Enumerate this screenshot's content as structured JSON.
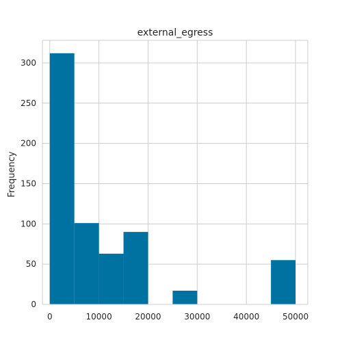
{
  "chart_data": {
    "type": "bar",
    "title": "external_egress",
    "xlabel": "",
    "ylabel": "Frequency",
    "xlim": [
      -1500,
      52500
    ],
    "ylim": [
      0,
      328
    ],
    "grid": true,
    "bar_color": "#0072a2",
    "grid_color": "#cccccc",
    "xticks": [
      0,
      10000,
      20000,
      30000,
      40000,
      50000
    ],
    "xtick_labels": [
      "0",
      "10000",
      "20000",
      "30000",
      "40000",
      "50000"
    ],
    "yticks": [
      0,
      50,
      100,
      150,
      200,
      250,
      300
    ],
    "ytick_labels": [
      "0",
      "50",
      "100",
      "150",
      "200",
      "250",
      "300"
    ],
    "bins": [
      {
        "x0": 0,
        "x1": 5000,
        "value": 312
      },
      {
        "x0": 5000,
        "x1": 10000,
        "value": 101
      },
      {
        "x0": 10000,
        "x1": 15000,
        "value": 63
      },
      {
        "x0": 15000,
        "x1": 20000,
        "value": 90
      },
      {
        "x0": 20000,
        "x1": 25000,
        "value": 0
      },
      {
        "x0": 25000,
        "x1": 30000,
        "value": 17
      },
      {
        "x0": 30000,
        "x1": 35000,
        "value": 0
      },
      {
        "x0": 35000,
        "x1": 40000,
        "value": 0
      },
      {
        "x0": 40000,
        "x1": 45000,
        "value": 0
      },
      {
        "x0": 45000,
        "x1": 50000,
        "value": 55
      }
    ]
  }
}
